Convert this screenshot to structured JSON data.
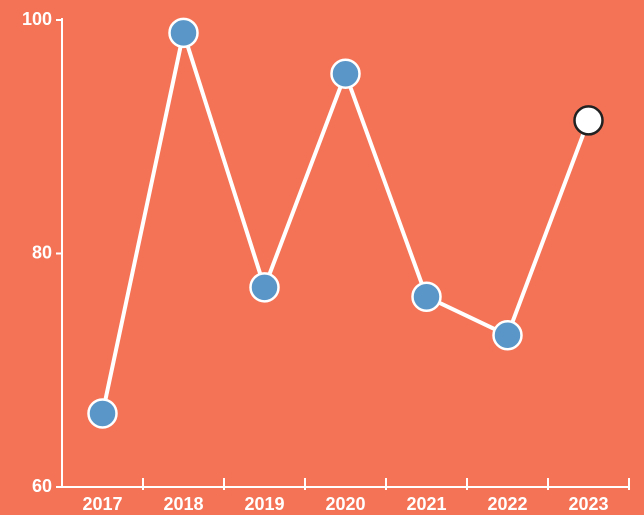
{
  "chart_data": {
    "type": "line",
    "categories": [
      "2017",
      "2018",
      "2019",
      "2020",
      "2021",
      "2022",
      "2023"
    ],
    "series": [
      {
        "color": "#ffffff",
        "marker_color": "#5a96c8",
        "last_marker_color": "#ffffff",
        "values": [
          66.3,
          98.9,
          77.1,
          95.4,
          76.3,
          73.0,
          91.4
        ]
      }
    ],
    "ylim": [
      60,
      100
    ],
    "yticks": [
      60,
      80,
      100
    ],
    "background": "#f47356",
    "grid": false
  }
}
